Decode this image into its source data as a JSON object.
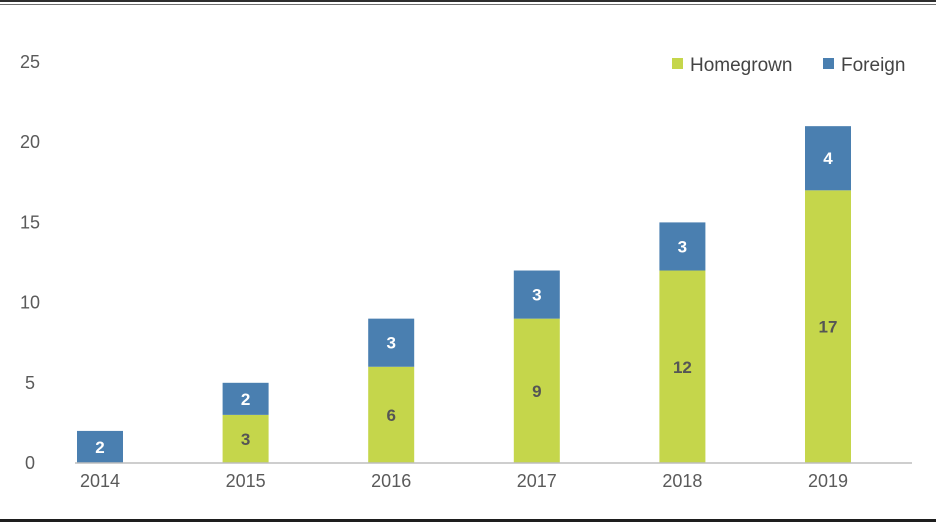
{
  "chart_data": {
    "type": "bar",
    "stacked": true,
    "title": "",
    "xlabel": "",
    "ylabel": "",
    "categories": [
      "2014",
      "2015",
      "2016",
      "2017",
      "2018",
      "2019"
    ],
    "series": [
      {
        "name": "Homegrown",
        "color": "#c5d64b",
        "label_color": "#555555",
        "values": [
          0,
          3,
          6,
          9,
          12,
          17
        ]
      },
      {
        "name": "Foreign",
        "color": "#4a7fb0",
        "label_color": "#ffffff",
        "values": [
          2,
          2,
          3,
          3,
          3,
          4
        ]
      }
    ],
    "ylim": [
      0,
      25
    ],
    "yticks": [
      "0",
      "5",
      "10",
      "15",
      "20",
      "25"
    ],
    "grid": false,
    "legend_position": "top-right"
  }
}
